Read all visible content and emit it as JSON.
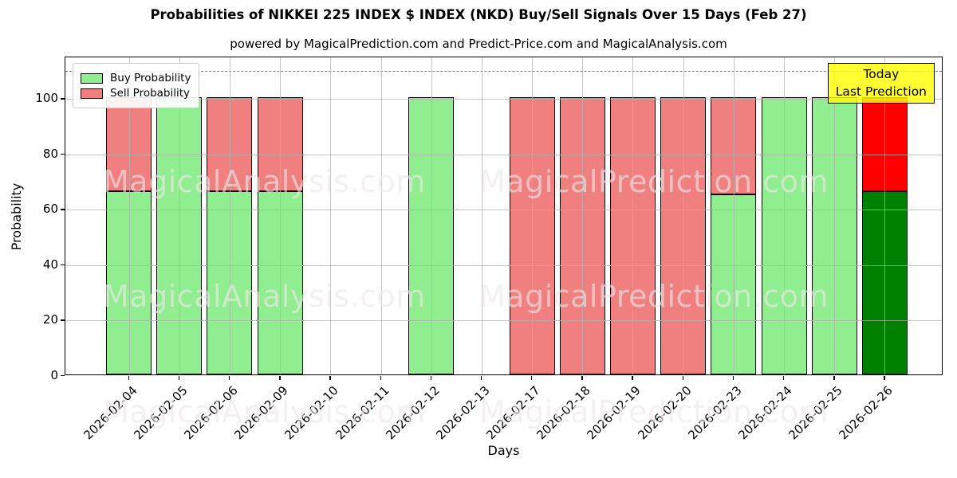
{
  "title": "Probabilities of NIKKEI 225 INDEX $ INDEX (NKD) Buy/Sell Signals Over 15 Days (Feb 27)",
  "subtitle": "powered by MagicalPrediction.com and Predict-Price.com and MagicalAnalysis.com",
  "legend": {
    "items": [
      {
        "label": "Buy Probability",
        "color": "#90ee90"
      },
      {
        "label": "Sell Probability",
        "color": "#f08080"
      }
    ]
  },
  "annotation_box": {
    "line1": "Today",
    "line2": "Last Prediction",
    "bg_color": "#ffff00"
  },
  "watermarks": {
    "left_text": "MagicalAnalysis.com",
    "right_text": "MagicalPrediction.com"
  },
  "chart_data": {
    "type": "bar",
    "stacked": true,
    "title": "Probabilities of NIKKEI 225 INDEX $ INDEX (NKD) Buy/Sell Signals Over 15 Days (Feb 27)",
    "xlabel": "Days",
    "ylabel": "Probability",
    "categories": [
      "2026-02-04",
      "2026-02-05",
      "2026-02-06",
      "2026-02-09",
      "2026-02-10",
      "2026-02-11",
      "2026-02-12",
      "2026-02-13",
      "2026-02-17",
      "2026-02-18",
      "2026-02-19",
      "2026-02-20",
      "2026-02-23",
      "2026-02-24",
      "2026-02-25",
      "2026-02-26"
    ],
    "series": [
      {
        "name": "Buy Probability",
        "color": "#90ee90",
        "values": [
          66,
          100,
          66,
          66,
          0,
          0,
          100,
          0,
          0,
          0,
          0,
          0,
          65,
          100,
          100,
          66
        ]
      },
      {
        "name": "Sell Probability",
        "color": "#f08080",
        "values": [
          34,
          0,
          34,
          34,
          0,
          0,
          0,
          0,
          100,
          100,
          100,
          100,
          35,
          0,
          0,
          34
        ]
      }
    ],
    "today_index": 15,
    "today_colors": {
      "buy": "#008000",
      "sell": "#ff0000"
    },
    "yticks": [
      0,
      20,
      40,
      60,
      80,
      100
    ],
    "ylim": [
      0,
      115
    ],
    "dashed_line_y": 110,
    "grid": true,
    "legend_position": "upper left"
  }
}
